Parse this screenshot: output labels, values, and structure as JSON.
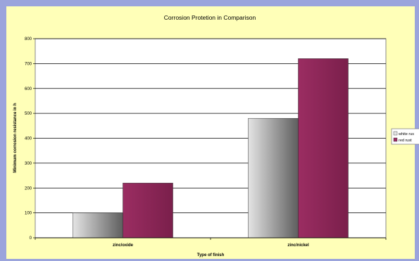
{
  "colors": {
    "frame": "#9BA4DC",
    "chart_area": "#FFFFB8",
    "plot_area": "#FFFFFF",
    "gridline": "#000000",
    "white_rust_light": "#E4E4E4",
    "white_rust_dark": "#5E5E5E",
    "red_rust": "#9B2D62",
    "red_rust_dark": "#7A1F4B"
  },
  "chart_data": {
    "type": "bar",
    "title": "Corrosion Protetion in Comparison",
    "xlabel": "Type of finish",
    "ylabel": "Minimum corrosion resistance in h",
    "categories": [
      "zinc/oxide",
      "zinc/nickel"
    ],
    "series": [
      {
        "name": "white rus",
        "values": [
          100,
          480
        ]
      },
      {
        "name": "red rust",
        "values": [
          220,
          720
        ]
      }
    ],
    "ylim": [
      0,
      800
    ],
    "yticks": [
      "0",
      "100",
      "200",
      "300",
      "400",
      "500",
      "600",
      "700",
      "800"
    ],
    "grid": true,
    "legend_position": "right"
  }
}
